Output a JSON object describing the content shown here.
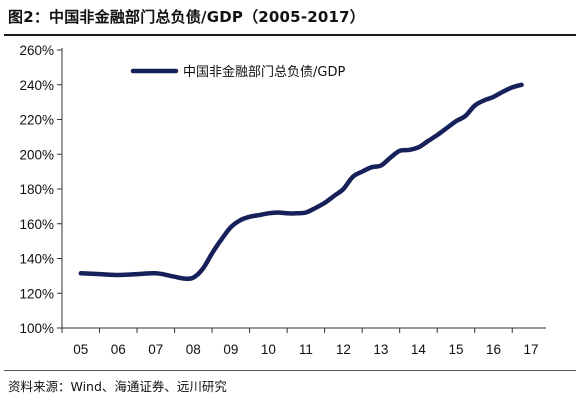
{
  "figure": {
    "title": "图2：中国非金融部门总负债/GDP（2005-2017）",
    "source": "资料来源：Wind、海通证券、远川研究"
  },
  "chart_data": {
    "type": "line",
    "title": "图2：中国非金融部门总负债/GDP（2005-2017）",
    "xlabel": "",
    "ylabel": "",
    "x_ticks": [
      "05",
      "06",
      "07",
      "08",
      "09",
      "10",
      "11",
      "12",
      "13",
      "14",
      "15",
      "16",
      "17"
    ],
    "y_ticks": [
      "100%",
      "120%",
      "140%",
      "160%",
      "180%",
      "200%",
      "220%",
      "240%",
      "260%"
    ],
    "ylim": [
      100,
      260
    ],
    "xlim": [
      2005,
      2017
    ],
    "grid": false,
    "legend": {
      "position": "top-left",
      "entries": [
        "中国非金融部门总负债/GDP"
      ]
    },
    "series": [
      {
        "name": "中国非金融部门总负债/GDP",
        "color": "#16215a",
        "x": [
          2005,
          2005.5,
          2006,
          2006.5,
          2007,
          2007.4,
          2007.75,
          2008,
          2008.25,
          2008.5,
          2008.75,
          2009,
          2009.25,
          2009.5,
          2009.75,
          2010,
          2010.25,
          2010.5,
          2010.75,
          2011,
          2011.25,
          2011.5,
          2011.75,
          2012,
          2012.25,
          2012.5,
          2012.75,
          2013,
          2013.25,
          2013.5,
          2013.75,
          2014,
          2014.25,
          2014.5,
          2014.75,
          2015,
          2015.25,
          2015.5,
          2015.75,
          2016,
          2016.25,
          2016.5,
          2016.75
        ],
        "values": [
          131.5,
          131,
          130.5,
          131,
          131.5,
          130,
          128.5,
          129,
          134,
          143,
          151,
          158,
          162,
          164,
          165,
          166,
          166.5,
          166,
          166,
          166.5,
          169,
          172,
          176,
          180,
          187,
          190,
          192.5,
          193.5,
          198,
          202,
          202.5,
          204,
          207.5,
          211,
          215,
          219,
          222,
          228,
          231,
          233,
          236,
          238.5,
          240
        ]
      }
    ]
  }
}
